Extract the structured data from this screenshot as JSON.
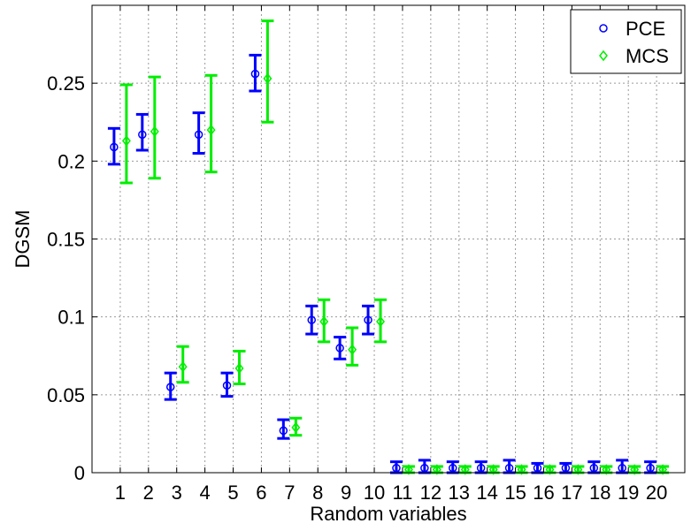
{
  "chart_data": {
    "type": "scatter",
    "xlabel": "Random variables",
    "ylabel": "DGSM",
    "categories": [
      "1",
      "2",
      "3",
      "4",
      "5",
      "6",
      "7",
      "8",
      "9",
      "10",
      "11",
      "12",
      "13",
      "14",
      "15",
      "16",
      "17",
      "18",
      "19",
      "20"
    ],
    "ylim": [
      0,
      0.3
    ],
    "yticks": [
      0,
      0.05,
      0.1,
      0.15,
      0.2,
      0.25
    ],
    "ytick_labels": [
      "0",
      "0.05",
      "0.1",
      "0.15",
      "0.2",
      "0.25"
    ],
    "grid": true,
    "legend": "top-right",
    "series": [
      {
        "name": "PCE",
        "color": "#0000ff",
        "marker": "circle",
        "values": [
          0.209,
          0.217,
          0.055,
          0.217,
          0.056,
          0.256,
          0.027,
          0.098,
          0.08,
          0.098,
          0.003,
          0.003,
          0.003,
          0.003,
          0.003,
          0.003,
          0.003,
          0.003,
          0.003,
          0.003
        ],
        "err_low": [
          0.198,
          0.207,
          0.047,
          0.205,
          0.049,
          0.245,
          0.022,
          0.089,
          0.073,
          0.089,
          0.0,
          0.0,
          0.0,
          0.0,
          0.0,
          0.0,
          0.0,
          0.0,
          0.0,
          0.0
        ],
        "err_high": [
          0.221,
          0.23,
          0.064,
          0.231,
          0.064,
          0.268,
          0.034,
          0.107,
          0.087,
          0.107,
          0.007,
          0.008,
          0.007,
          0.007,
          0.008,
          0.006,
          0.006,
          0.007,
          0.008,
          0.007
        ]
      },
      {
        "name": "MCS",
        "color": "#00ee00",
        "marker": "diamond",
        "values": [
          0.213,
          0.219,
          0.068,
          0.22,
          0.067,
          0.253,
          0.029,
          0.097,
          0.079,
          0.097,
          0.002,
          0.002,
          0.002,
          0.002,
          0.002,
          0.002,
          0.002,
          0.002,
          0.002,
          0.002
        ],
        "err_low": [
          0.186,
          0.189,
          0.058,
          0.193,
          0.057,
          0.225,
          0.024,
          0.084,
          0.069,
          0.084,
          0.0,
          0.0,
          0.0,
          0.0,
          0.0,
          0.0,
          0.0,
          0.0,
          0.0,
          0.0
        ],
        "err_high": [
          0.249,
          0.254,
          0.081,
          0.255,
          0.078,
          0.29,
          0.035,
          0.111,
          0.093,
          0.111,
          0.004,
          0.004,
          0.004,
          0.004,
          0.004,
          0.004,
          0.004,
          0.004,
          0.004,
          0.004
        ]
      }
    ]
  }
}
